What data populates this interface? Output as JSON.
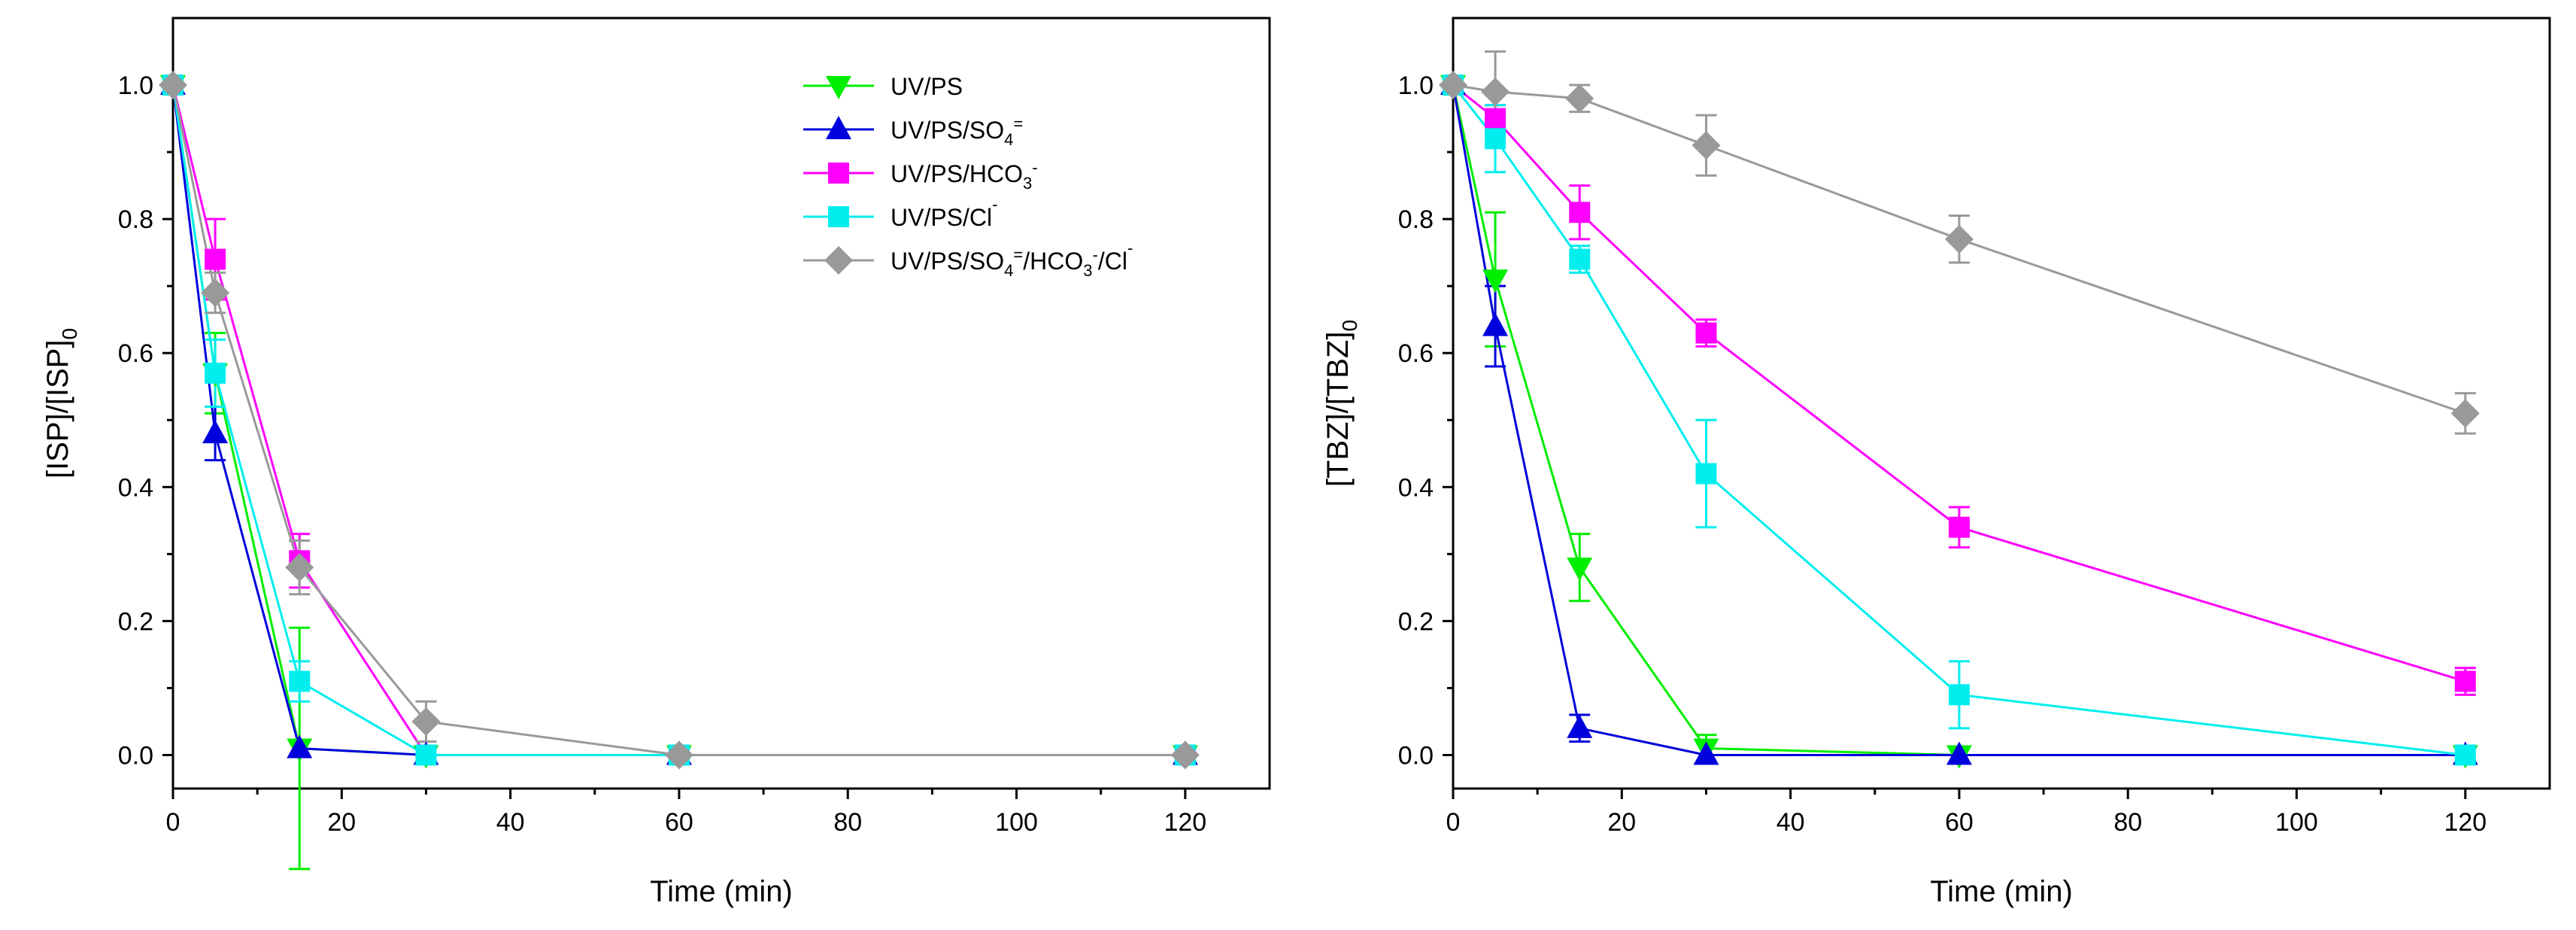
{
  "chart_data": [
    {
      "type": "line",
      "xlabel": "Time (min)",
      "ylabel": "[ISP]/[ISP]",
      "ylabel_sub": "0",
      "xlim": [
        0,
        130
      ],
      "ylim": [
        -0.05,
        1.1
      ],
      "xticks": [
        0,
        20,
        40,
        60,
        80,
        100,
        120
      ],
      "yticks": [
        0.0,
        0.2,
        0.4,
        0.6,
        0.8,
        1.0
      ],
      "ytick_labels": [
        "0.0",
        "0.2",
        "0.4",
        "0.6",
        "0.8",
        "1.0"
      ],
      "legend_position": "top-right",
      "series": [
        {
          "name": "UV/PS",
          "color": "#00ee00",
          "marker": "triangle-down",
          "x": [
            0,
            5,
            15,
            30,
            60,
            120
          ],
          "y": [
            1.0,
            0.57,
            0.01,
            0.0,
            0.0,
            0.0
          ],
          "err": [
            0,
            0.06,
            0.18,
            0.01,
            0,
            0
          ]
        },
        {
          "name": "UV/PS/SO4=",
          "color": "#0000dd",
          "marker": "triangle-up",
          "x": [
            0,
            5,
            15,
            30,
            60,
            120
          ],
          "y": [
            1.0,
            0.48,
            0.01,
            0.0,
            0.0,
            0.0
          ],
          "err": [
            0,
            0.04,
            0.01,
            0,
            0,
            0
          ]
        },
        {
          "name": "UV/PS/HCO3-",
          "color": "#ff00ff",
          "marker": "square",
          "x": [
            0,
            5,
            15,
            30,
            60,
            120
          ],
          "y": [
            1.0,
            0.74,
            0.29,
            0.0,
            0.0,
            0.0
          ],
          "err": [
            0,
            0.06,
            0.04,
            0,
            0,
            0
          ]
        },
        {
          "name": "UV/PS/Cl-",
          "color": "#00eeee",
          "marker": "square",
          "x": [
            0,
            5,
            15,
            30,
            60,
            120
          ],
          "y": [
            1.0,
            0.57,
            0.11,
            0.0,
            0.0,
            0.0
          ],
          "err": [
            0,
            0.05,
            0.03,
            0,
            0,
            0
          ]
        },
        {
          "name": "UV/PS/SO4=/HCO3-/Cl-",
          "color": "#999999",
          "marker": "diamond",
          "x": [
            0,
            5,
            15,
            30,
            60,
            120
          ],
          "y": [
            1.0,
            0.69,
            0.28,
            0.05,
            0.0,
            0.0
          ],
          "err": [
            0,
            0.03,
            0.04,
            0.03,
            0,
            0
          ]
        }
      ],
      "legend": [
        {
          "parts": [
            {
              "t": "UV/PS"
            }
          ]
        },
        {
          "parts": [
            {
              "t": "UV/PS/SO"
            },
            {
              "t": "4",
              "sub": true
            },
            {
              "t": "=",
              "sup": true
            }
          ]
        },
        {
          "parts": [
            {
              "t": "UV/PS/HCO"
            },
            {
              "t": "3",
              "sub": true
            },
            {
              "t": "-",
              "sup": true
            }
          ]
        },
        {
          "parts": [
            {
              "t": "UV/PS/Cl"
            },
            {
              "t": "-",
              "sup": true
            }
          ]
        },
        {
          "parts": [
            {
              "t": "UV/PS/SO"
            },
            {
              "t": "4",
              "sub": true
            },
            {
              "t": "=",
              "sup": true
            },
            {
              "t": "/HCO"
            },
            {
              "t": "3",
              "sub": true
            },
            {
              "t": "-",
              "sup": true
            },
            {
              "t": "/Cl"
            },
            {
              "t": "-",
              "sup": true
            }
          ]
        }
      ]
    },
    {
      "type": "line",
      "xlabel": "Time (min)",
      "ylabel": "[TBZ]/[TBZ]",
      "ylabel_sub": "0",
      "xlim": [
        0,
        130
      ],
      "ylim": [
        -0.05,
        1.1
      ],
      "xticks": [
        0,
        20,
        40,
        60,
        80,
        100,
        120
      ],
      "yticks": [
        0.0,
        0.2,
        0.4,
        0.6,
        0.8,
        1.0
      ],
      "ytick_labels": [
        "0.0",
        "0.2",
        "0.4",
        "0.6",
        "0.8",
        "1.0"
      ],
      "series": [
        {
          "name": "UV/PS",
          "color": "#00ee00",
          "marker": "triangle-down",
          "x": [
            0,
            5,
            15,
            30,
            60,
            120
          ],
          "y": [
            1.0,
            0.71,
            0.28,
            0.01,
            0.0,
            0.0
          ],
          "err": [
            0,
            0.1,
            0.05,
            0.02,
            0,
            0
          ]
        },
        {
          "name": "UV/PS/SO4=",
          "color": "#0000dd",
          "marker": "triangle-up",
          "x": [
            0,
            5,
            15,
            30,
            60,
            120
          ],
          "y": [
            1.0,
            0.64,
            0.04,
            0.0,
            0.0,
            0.0
          ],
          "err": [
            0,
            0.06,
            0.02,
            0,
            0,
            0
          ]
        },
        {
          "name": "UV/PS/HCO3-",
          "color": "#ff00ff",
          "marker": "square",
          "x": [
            0,
            5,
            15,
            30,
            60,
            120
          ],
          "y": [
            1.0,
            0.95,
            0.81,
            0.63,
            0.34,
            0.11
          ],
          "err": [
            0,
            0.02,
            0.04,
            0.02,
            0.03,
            0.02
          ]
        },
        {
          "name": "UV/PS/Cl-",
          "color": "#00eeee",
          "marker": "square",
          "x": [
            0,
            5,
            15,
            30,
            60,
            120
          ],
          "y": [
            1.0,
            0.92,
            0.74,
            0.42,
            0.09,
            0.0
          ],
          "err": [
            0,
            0.05,
            0.02,
            0.08,
            0.05,
            0
          ]
        },
        {
          "name": "UV/PS/SO4=/HCO3-/Cl-",
          "color": "#999999",
          "marker": "diamond",
          "x": [
            0,
            5,
            15,
            30,
            60,
            120
          ],
          "y": [
            1.0,
            0.99,
            0.98,
            0.91,
            0.77,
            0.51
          ],
          "err": [
            0,
            0.06,
            0.02,
            0.045,
            0.035,
            0.03
          ]
        }
      ]
    }
  ]
}
